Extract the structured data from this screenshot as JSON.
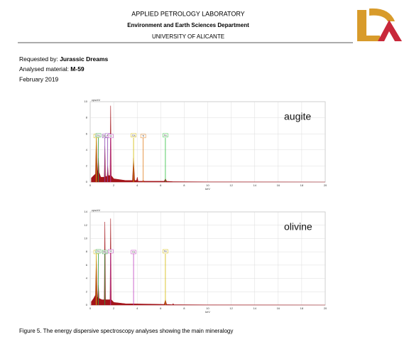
{
  "header": {
    "title": "APPLIED PETROLOGY LABORATORY",
    "department": "Environment and Earth Sciences Department",
    "university": "UNIVERSITY OF ALICANTE"
  },
  "info": {
    "requested_label": "Requested by:",
    "requested_value": "Jurassic Dreams",
    "material_label": "Analysed material:",
    "material_value": "M-59",
    "date": "February 2019"
  },
  "chart_data": [
    {
      "type": "area",
      "title": "augite",
      "x_label": "keV",
      "y_label": "cps/eV",
      "color": "#a3141a",
      "grid": true,
      "xlim": [
        0,
        20
      ],
      "xticks": [
        0,
        2,
        4,
        6,
        8,
        10,
        12,
        14,
        16,
        18,
        20
      ],
      "ylim": [
        0,
        10
      ],
      "yticks": [
        0,
        2,
        4,
        6,
        8,
        10
      ],
      "x": [
        0.1,
        0.3,
        0.45,
        0.52,
        0.6,
        0.65,
        0.7,
        0.75,
        0.9,
        1.2,
        1.25,
        1.3,
        1.44,
        1.49,
        1.54,
        1.69,
        1.74,
        1.79,
        2.0,
        3.0,
        3.6,
        3.69,
        3.78,
        3.95,
        4.01,
        4.07,
        4.45,
        4.51,
        4.57,
        6.3,
        6.4,
        6.5,
        7.0,
        10,
        15,
        20
      ],
      "values": [
        0.5,
        0.8,
        1,
        6,
        1.2,
        1.5,
        3,
        1.2,
        0.6,
        0.6,
        4.5,
        0.7,
        0.7,
        2,
        0.8,
        0.8,
        9.5,
        0.8,
        0.4,
        0.2,
        0.2,
        3,
        0.2,
        0.2,
        0.6,
        0.1,
        0.1,
        0.2,
        0.1,
        0.1,
        0.4,
        0.1,
        0.05,
        0.02,
        0.01,
        0
      ],
      "peaks": [
        {
          "label": "O",
          "x": 0.52,
          "color": "#d4b800"
        },
        {
          "label": "Fe",
          "x": 0.7,
          "color": "#2e9e3e"
        },
        {
          "label": "Mg",
          "x": 1.25,
          "color": "#8a3fb0"
        },
        {
          "label": "Al",
          "x": 1.49,
          "color": "#8a3fb0"
        },
        {
          "label": "Si",
          "x": 1.74,
          "color": "#c040c0"
        },
        {
          "label": "Ca",
          "x": 3.69,
          "color": "#d4b800"
        },
        {
          "label": "Ti",
          "x": 4.51,
          "color": "#e08020"
        },
        {
          "label": "Fe",
          "x": 6.4,
          "color": "#2ebe3e"
        }
      ]
    },
    {
      "type": "area",
      "title": "olivine",
      "x_label": "keV",
      "y_label": "cps/eV",
      "color": "#a3141a",
      "grid": true,
      "xlim": [
        0,
        20
      ],
      "xticks": [
        0,
        2,
        4,
        6,
        8,
        10,
        12,
        14,
        16,
        18,
        20
      ],
      "ylim": [
        0,
        14
      ],
      "yticks": [
        0,
        2,
        4,
        6,
        8,
        10,
        12,
        14
      ],
      "x": [
        0.1,
        0.3,
        0.45,
        0.52,
        0.6,
        0.65,
        0.7,
        0.75,
        1.0,
        1.2,
        1.25,
        1.3,
        1.69,
        1.74,
        1.79,
        2.0,
        3.0,
        6.3,
        6.4,
        6.5,
        7.0,
        7.06,
        7.12,
        10,
        15,
        20
      ],
      "values": [
        0.5,
        1,
        1.5,
        7.5,
        1,
        1.2,
        3,
        1,
        0.8,
        0.8,
        12.5,
        0.8,
        0.8,
        13,
        0.8,
        0.4,
        0.2,
        0.1,
        0.8,
        0.1,
        0.05,
        0.2,
        0.05,
        0.02,
        0.01,
        0
      ],
      "peaks": [
        {
          "label": "O",
          "x": 0.52,
          "color": "#d4b800"
        },
        {
          "label": "Fe",
          "x": 0.7,
          "color": "#2e9e3e"
        },
        {
          "label": "Mg",
          "x": 1.25,
          "color": "#2e9e3e"
        },
        {
          "label": "Si",
          "x": 1.74,
          "color": "#c040c0"
        },
        {
          "label": "Ca",
          "x": 3.69,
          "color": "#c040c0"
        },
        {
          "label": "Fe",
          "x": 6.4,
          "color": "#d4b800"
        }
      ]
    }
  ],
  "caption": "Figure 5. The energy dispersive spectroscopy analyses showing the main mineralogy"
}
